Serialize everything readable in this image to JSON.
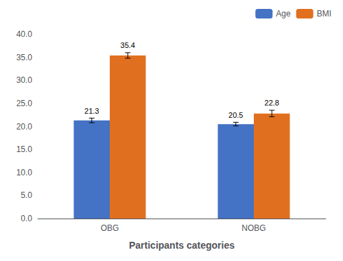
{
  "chart_data": {
    "type": "bar",
    "xlabel": "Participants categories",
    "categories": [
      "OBG",
      "NOBG"
    ],
    "series": [
      {
        "name": "Age",
        "color": "#4472C4",
        "values": [
          21.3,
          20.5
        ],
        "errors": [
          0.5,
          0.4
        ]
      },
      {
        "name": "BMI",
        "color": "#E07020",
        "values": [
          35.4,
          22.8
        ],
        "errors": [
          0.6,
          0.7
        ]
      }
    ],
    "ylim": [
      0.0,
      40.0
    ],
    "yticks": [
      {
        "value": 0,
        "label": "0.0"
      },
      {
        "value": 5,
        "label": "5.0"
      },
      {
        "value": 10,
        "label": "10.0"
      },
      {
        "value": 15,
        "label": "15.0"
      },
      {
        "value": 20,
        "label": "20.0"
      },
      {
        "value": 25,
        "label": "25.0"
      },
      {
        "value": 30,
        "label": "30.0"
      },
      {
        "value": 35,
        "label": "35.0"
      },
      {
        "value": 40,
        "label": "40.0"
      }
    ],
    "grid": false,
    "legend": "upper right",
    "data_labels": true
  }
}
